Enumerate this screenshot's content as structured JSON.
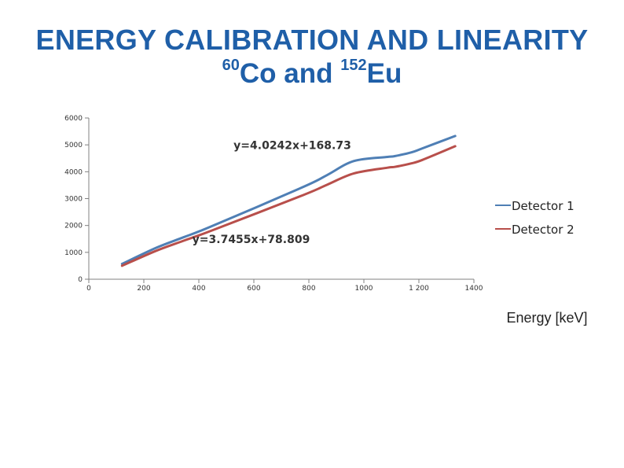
{
  "slide": {
    "title_line1": "ENERGY CALIBRATION AND LINEARITY",
    "title_line2": {
      "sup1": "60",
      "text1": "Co and ",
      "sup2": "152",
      "text2": "Eu"
    }
  },
  "chart_data": {
    "type": "line",
    "title": "",
    "xlabel": "Energy [keV]",
    "ylabel": "",
    "xlim": [
      0,
      1400
    ],
    "ylim": [
      0,
      6000
    ],
    "x_ticks": [
      0,
      200,
      400,
      600,
      800,
      1000,
      1200,
      1400
    ],
    "x_tick_labels": [
      "0",
      "200",
      "400",
      "600",
      "800",
      "1000",
      "1 200",
      "1400"
    ],
    "y_ticks": [
      0,
      1000,
      2000,
      3000,
      4000,
      5000,
      6000
    ],
    "y_tick_labels": [
      "0",
      "1000",
      "2000",
      "3000",
      "4000",
      "5000",
      "6000"
    ],
    "grid": false,
    "legend_position": "right",
    "series": [
      {
        "name": "Detector 1",
        "color": "#4f7fb5",
        "x": [
          121,
          245,
          344,
          444,
          779,
          867,
          964,
          1086,
          1112,
          1173,
          1213,
          1332
        ],
        "y": [
          570,
          1170,
          1560,
          1960,
          3430,
          3880,
          4400,
          4550,
          4580,
          4720,
          4870,
          5330
        ]
      },
      {
        "name": "Detector 2",
        "color": "#b84f4b",
        "x": [
          121,
          245,
          344,
          444,
          779,
          867,
          964,
          1086,
          1112,
          1173,
          1213,
          1332
        ],
        "y": [
          500,
          1060,
          1430,
          1800,
          3130,
          3520,
          3940,
          4150,
          4180,
          4310,
          4440,
          4950
        ]
      }
    ],
    "annotations": [
      {
        "text": "y=4.0242x+168.73",
        "x": 740,
        "y": 4850
      },
      {
        "text": "y=3.7455x+78.809",
        "x": 590,
        "y": 1340
      }
    ]
  }
}
